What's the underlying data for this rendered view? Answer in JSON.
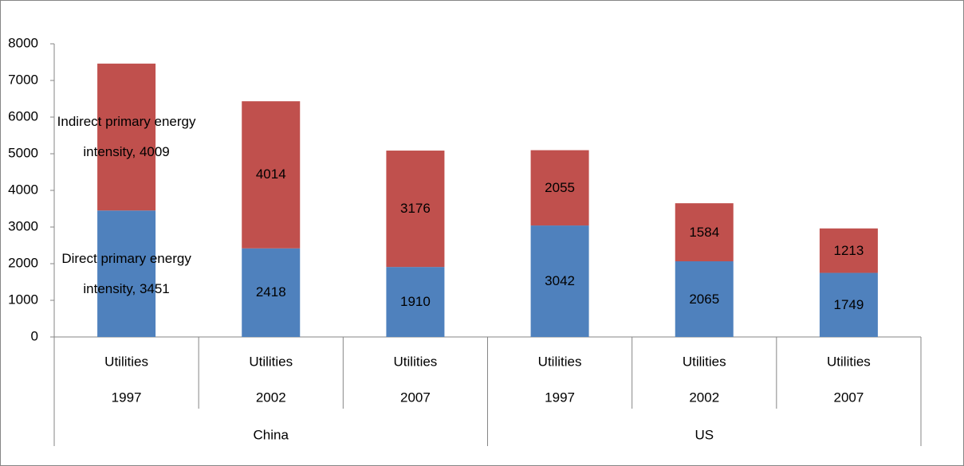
{
  "chart_data": {
    "type": "stacked_bar",
    "categories": [
      "Utilities",
      "Utilities",
      "Utilities",
      "Utilities",
      "Utilities",
      "Utilities"
    ],
    "subcategories": [
      "1997",
      "2002",
      "2007",
      "1997",
      "2002",
      "2007"
    ],
    "groups": [
      {
        "name": "China",
        "span": 3
      },
      {
        "name": "US",
        "span": 3
      }
    ],
    "series": [
      {
        "color": "#4f81bd",
        "values": [
          3451,
          2418,
          1910,
          3042,
          2065,
          1749
        ],
        "value_labels": [
          "Direct primary energy intensity, 3451",
          "2418",
          "1910",
          "3042",
          "2065",
          "1749"
        ]
      },
      {
        "color": "#c0504d",
        "values": [
          4009,
          4014,
          3176,
          2055,
          1584,
          1213
        ],
        "value_labels": [
          "Indirect primary energy intensity, 4009",
          "4014",
          "3176",
          "2055",
          "1584",
          "1213"
        ]
      }
    ],
    "ylim": [
      0,
      8000
    ],
    "yticks": [
      0,
      1000,
      2000,
      3000,
      4000,
      5000,
      6000,
      7000,
      8000
    ],
    "grid": false
  }
}
